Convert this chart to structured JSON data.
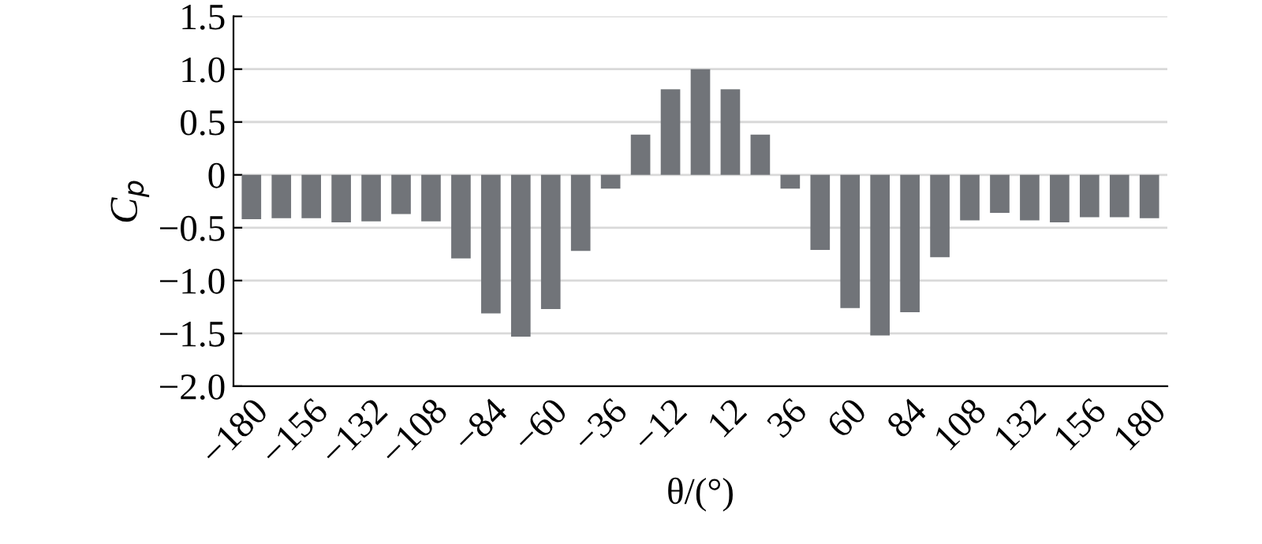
{
  "chart_data": {
    "type": "bar",
    "xlabel": "θ/(°)",
    "ylabel": "C$_{p}$",
    "categories": [
      "−180",
      null,
      "−156",
      null,
      "−132",
      null,
      "−108",
      null,
      "−84",
      null,
      "−60",
      null,
      "−36",
      null,
      "−12",
      null,
      "12",
      null,
      "36",
      null,
      "60",
      null,
      "84",
      null,
      "108",
      null,
      "132",
      null,
      "156",
      null,
      "180"
    ],
    "values": [
      -0.42,
      -0.41,
      -0.41,
      -0.45,
      -0.44,
      -0.37,
      -0.44,
      -0.79,
      -1.31,
      -1.53,
      -1.27,
      -0.72,
      -0.13,
      0.38,
      0.81,
      1.0,
      0.81,
      0.38,
      -0.13,
      -0.71,
      -1.26,
      -1.52,
      -1.3,
      -0.78,
      -0.43,
      -0.36,
      -0.43,
      -0.45,
      -0.4,
      -0.4,
      -0.41
    ],
    "color": "#717479",
    "ylim": [
      -2.0,
      1.5
    ],
    "yticks": [
      {
        "value": -2.0,
        "label": "−2.0"
      },
      {
        "value": -1.5,
        "label": "−1.5"
      },
      {
        "value": -1.0,
        "label": "−1.0"
      },
      {
        "value": -0.5,
        "label": "−0.5"
      },
      0,
      {
        "value": 0.5,
        "label": "0.5"
      },
      {
        "value": 1.0,
        "label": "1.0"
      },
      {
        "value": 1.5,
        "label": "1.5"
      }
    ],
    "grid": "y"
  }
}
